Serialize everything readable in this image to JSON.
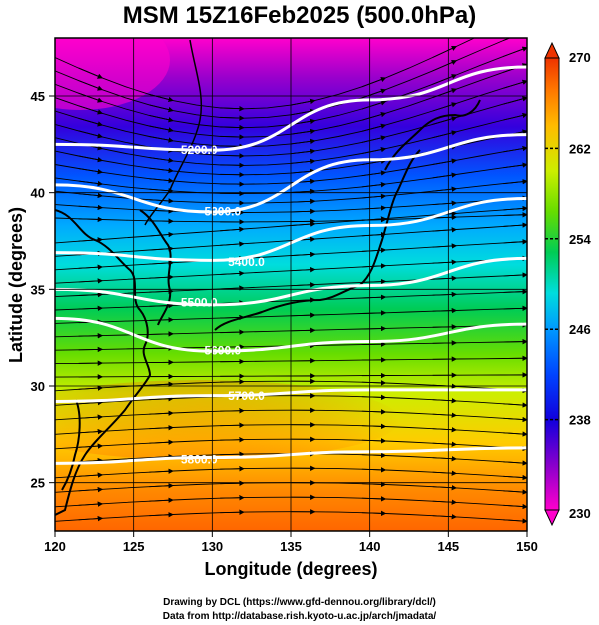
{
  "title": "MSM 15Z16Feb2025 (500.0hPa)",
  "credits": {
    "line1": "Drawing by DCL (https://www.gfd-dennou.org/library/dcl/)",
    "line2": "Data from http://database.rish.kyoto-u.ac.jp/arch/jmadata/"
  },
  "map": {
    "xlabel": "Longitude (degrees)",
    "ylabel": "Latitude  (degrees)",
    "lon_range": [
      120,
      150
    ],
    "lat_range": [
      22.5,
      48
    ],
    "lon_ticks": [
      "120",
      "125",
      "130",
      "135",
      "140",
      "145",
      "150"
    ],
    "lon_tick_values": [
      120,
      125,
      130,
      135,
      140,
      145,
      150
    ],
    "lat_ticks": [
      "25",
      "30",
      "35",
      "40",
      "45"
    ],
    "lat_tick_values": [
      25,
      30,
      35,
      40,
      45
    ],
    "field": "temperature (shaded), geopotential height (contours), wind streamlines",
    "contours": [
      {
        "label": "5200.0",
        "value": 5200,
        "lats_at_lon_120_130_140_150": [
          42.5,
          42.2,
          44.8,
          46.5
        ]
      },
      {
        "label": "5300.0",
        "value": 5300,
        "lats_at_lon_120_130_140_150": [
          40.4,
          39.0,
          41.7,
          43.0
        ]
      },
      {
        "label": "5400.0",
        "value": 5400,
        "lats_at_lon_120_130_140_150": [
          36.9,
          36.5,
          38.3,
          39.7
        ]
      },
      {
        "label": "5500.0",
        "value": 5500,
        "lats_at_lon_120_130_140_150": [
          35.0,
          34.2,
          35.2,
          36.6
        ]
      },
      {
        "label": "5600.0",
        "value": 5600,
        "lats_at_lon_120_130_140_150": [
          33.5,
          31.8,
          32.3,
          33.2
        ]
      },
      {
        "label": "5700.0",
        "value": 5700,
        "lats_at_lon_120_130_140_150": [
          29.2,
          29.5,
          29.8,
          29.8
        ]
      },
      {
        "label": "5800.0",
        "value": 5800,
        "lats_at_lon_120_130_140_150": [
          26.0,
          26.3,
          26.6,
          26.8
        ]
      }
    ]
  },
  "colorbar": {
    "min_label": "230",
    "max_label": "270",
    "tick_labels": [
      "238",
      "246",
      "254",
      "262"
    ],
    "tick_values": [
      238,
      246,
      254,
      262
    ],
    "range": [
      230,
      270
    ],
    "colors": [
      "#ff00cc",
      "#aa00cc",
      "#5500cc",
      "#0000ee",
      "#0066ff",
      "#00bbff",
      "#00ddcc",
      "#00cc66",
      "#33cc00",
      "#99dd00",
      "#ddee00",
      "#ffcc00",
      "#ff9900",
      "#ff6600",
      "#ee3300"
    ]
  }
}
